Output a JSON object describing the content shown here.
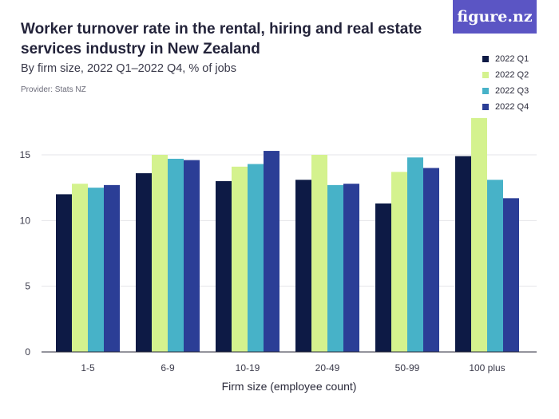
{
  "header": {
    "title": "Worker turnover rate in the rental, hiring and real estate services industry in New Zealand",
    "subtitle": "By firm size, 2022 Q1–2022 Q4, % of jobs",
    "provider": "Provider: Stats NZ"
  },
  "logo": {
    "text": "figure.nz",
    "color": "#5b55c4"
  },
  "colors": {
    "series": [
      "#0d1a45",
      "#d4f28e",
      "#47b2c8",
      "#2b3e96"
    ],
    "gridline": "#e4e4ea",
    "axis": "#2a2a3a"
  },
  "chart_data": {
    "type": "bar",
    "title": "Worker turnover rate in the rental, hiring and real estate services industry in New Zealand",
    "subtitle": "By firm size, 2022 Q1–2022 Q4, % of jobs",
    "xlabel": "Firm size (employee count)",
    "ylabel": "",
    "ylim": [
      0,
      18
    ],
    "yticks": [
      0,
      5,
      10,
      15
    ],
    "grid": true,
    "legend_position": "top-right",
    "categories": [
      "1-5",
      "6-9",
      "10-19",
      "20-49",
      "50-99",
      "100 plus"
    ],
    "series": [
      {
        "name": "2022 Q1",
        "values": [
          12.0,
          13.6,
          13.0,
          13.1,
          11.3,
          14.9
        ]
      },
      {
        "name": "2022 Q2",
        "values": [
          12.8,
          15.0,
          14.1,
          15.0,
          13.7,
          17.8
        ]
      },
      {
        "name": "2022 Q3",
        "values": [
          12.5,
          14.7,
          14.3,
          12.7,
          14.8,
          13.1
        ]
      },
      {
        "name": "2022 Q4",
        "values": [
          12.7,
          14.6,
          15.3,
          12.8,
          14.0,
          11.7
        ]
      }
    ]
  }
}
